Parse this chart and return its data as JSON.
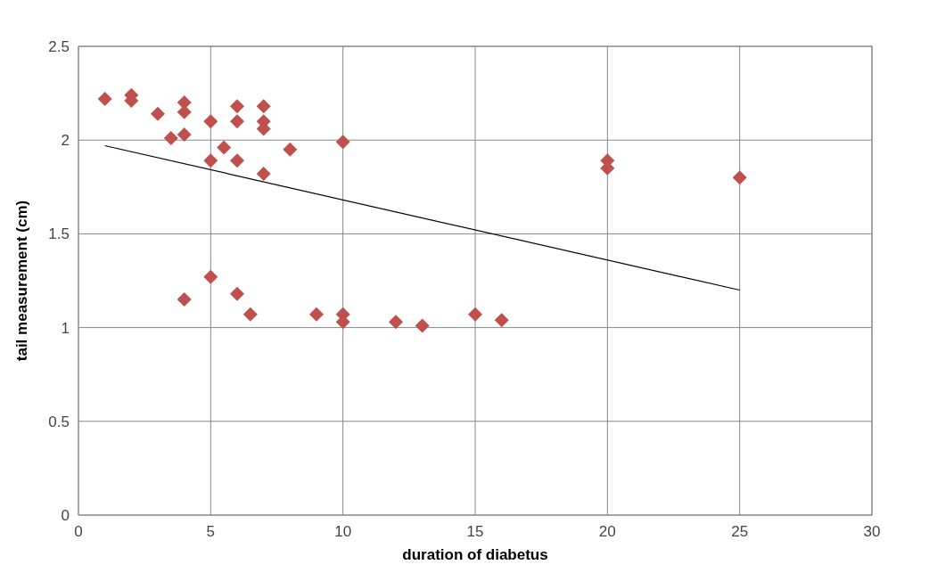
{
  "chart_data": {
    "type": "scatter",
    "xlabel": "duration of diabetus",
    "ylabel": "tail measurement (cm)",
    "xlim": [
      0,
      30
    ],
    "xticks": [
      0,
      5,
      10,
      15,
      20,
      25,
      30
    ],
    "ylim": [
      0,
      2.5
    ],
    "yticks": [
      0,
      0.5,
      1,
      1.5,
      2,
      2.5
    ],
    "grid": true,
    "marker": "diamond",
    "series": [
      {
        "color": "#c0504d",
        "x": [
          1,
          2,
          2,
          3,
          3.5,
          4,
          4,
          4,
          4,
          5,
          5,
          5,
          5.5,
          6,
          6,
          6,
          6,
          6.5,
          7,
          7,
          7,
          7,
          8,
          9,
          10,
          10,
          10,
          12,
          13,
          15,
          16,
          20,
          20,
          25
        ],
        "values": [
          2.22,
          2.24,
          2.21,
          2.14,
          2.01,
          2.2,
          2.15,
          2.03,
          1.15,
          2.1,
          1.89,
          1.27,
          1.96,
          2.18,
          2.1,
          1.89,
          1.18,
          1.07,
          2.18,
          2.1,
          2.06,
          1.82,
          1.95,
          1.07,
          1.99,
          1.07,
          1.03,
          1.03,
          1.01,
          1.07,
          1.04,
          1.89,
          1.85,
          1.8
        ]
      },
      {
        "type": "line",
        "color": "#000000",
        "marker": "none",
        "x": [
          1,
          25
        ],
        "values": [
          1.97,
          1.2
        ]
      }
    ]
  }
}
